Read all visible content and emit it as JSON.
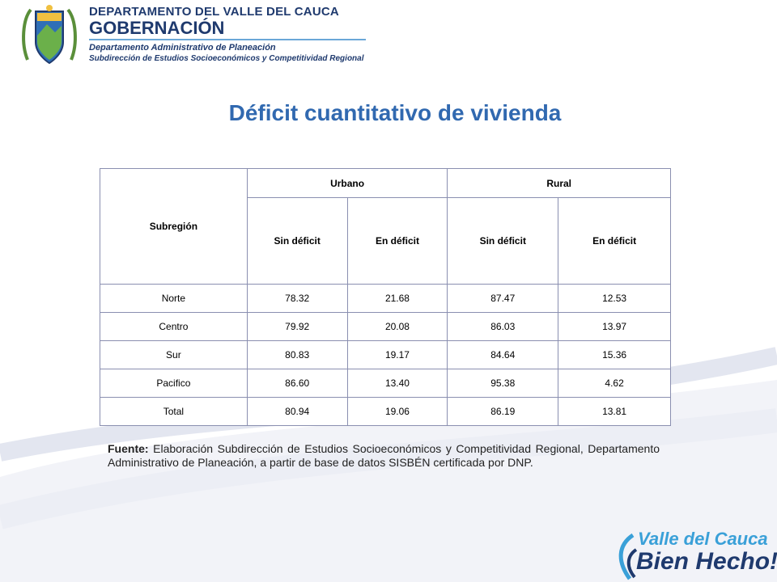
{
  "header": {
    "line1": "DEPARTAMENTO DEL VALLE DEL CAUCA",
    "line2": "GOBERNACIÓN",
    "line3": "Departamento  Administrativo de Planeación",
    "line4": "Subdirección de Estudios Socioeconómicos y Competitividad Regional"
  },
  "title": "Déficit cuantitativo de vivienda",
  "table": {
    "region_header": "Subregión",
    "group_headers": [
      "Urbano",
      "Rural"
    ],
    "sub_headers": [
      "Sin déficit",
      "En déficit",
      "Sin déficit",
      "En déficit"
    ],
    "rows": [
      {
        "region": "Norte",
        "values": [
          "78.32",
          "21.68",
          "87.47",
          "12.53"
        ]
      },
      {
        "region": "Centro",
        "values": [
          "79.92",
          "20.08",
          "86.03",
          "13.97"
        ]
      },
      {
        "region": "Sur",
        "values": [
          "80.83",
          "19.17",
          "84.64",
          "15.36"
        ]
      },
      {
        "region": "Pacifico",
        "values": [
          "86.60",
          "13.40",
          "95.38",
          "4.62"
        ]
      },
      {
        "region": "Total",
        "values": [
          "80.94",
          "19.06",
          "86.19",
          "13.81"
        ]
      }
    ]
  },
  "source": {
    "label": "Fuente:",
    "text": " Elaboración Subdirección de Estudios Socioeconómicos y Competitividad Regional, Departamento Administrativo de Planeación, a partir de base de datos SISBÉN certificada por DNP."
  },
  "logo": {
    "line1": "Valle del Cauca",
    "line2": "Bien Hecho!"
  },
  "colors": {
    "title": "#3169b0",
    "header_text": "#1f3a6e",
    "table_border": "#8a8fb0"
  }
}
